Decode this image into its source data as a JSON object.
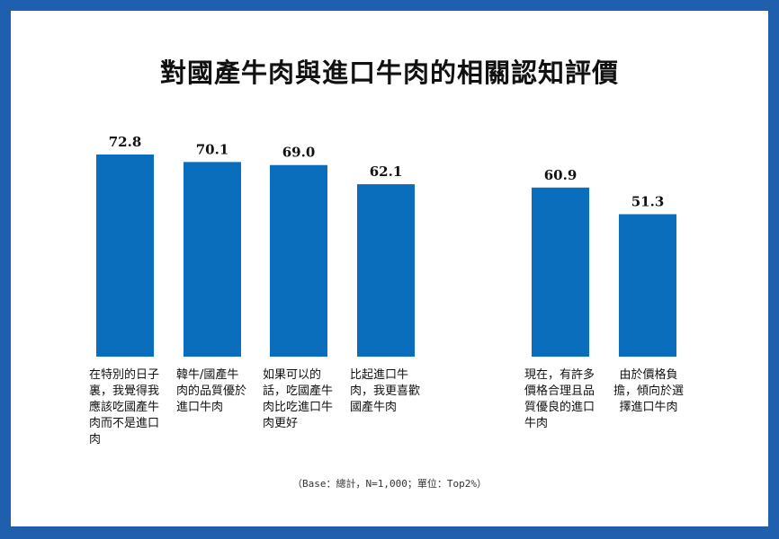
{
  "chart_data": {
    "type": "bar",
    "title": "對國產牛肉與進口牛肉的相關認知評價",
    "categories": [
      "在特別的日子裏，我覺得我應該吃國產牛肉而不是進口肉",
      "韓牛/國產牛肉的品質優於進口牛肉",
      "如果可以的話，吃國產牛肉比吃進口牛肉更好",
      "比起進口牛肉，我更喜歡國產牛肉",
      "現在，有許多價格合理且品質優良的進口牛肉",
      "由於價格負擔，傾向於選擇進口牛肉"
    ],
    "values": [
      72.8,
      70.1,
      69.0,
      62.1,
      60.9,
      51.3
    ],
    "ylim": [
      0,
      100
    ],
    "grid": false,
    "bar_color": "#0a6ebd",
    "note": "（Base：總計，N=1,000；單位：Top2%）"
  }
}
